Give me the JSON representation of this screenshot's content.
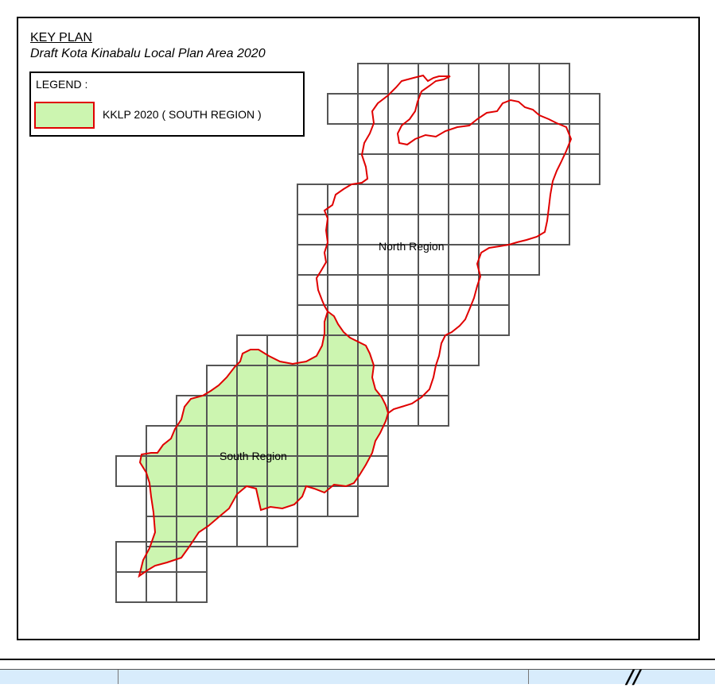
{
  "title": {
    "heading": "KEY PLAN",
    "subtitle": "Draft Kota Kinabalu Local Plan Area 2020"
  },
  "legend": {
    "title": "LEGEND :",
    "items": [
      {
        "label": "KKLP 2020 ( SOUTH REGION )",
        "fill": "#ccf5b0",
        "stroke": "#e00000"
      }
    ]
  },
  "regions": {
    "north": "North Region",
    "south": "South Region"
  },
  "colors": {
    "boundary": "#e00000",
    "south_fill": "#ccf5b0",
    "grid": "#555555",
    "bottom_bar": "#d8ecfc"
  },
  "north_arrow_glyph": "//"
}
